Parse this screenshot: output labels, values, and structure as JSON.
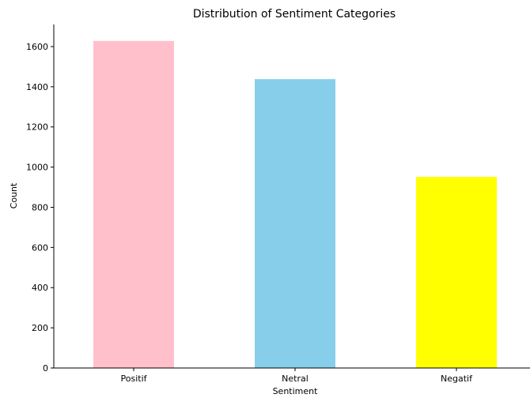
{
  "chart_data": {
    "type": "bar",
    "title": "Distribution of Sentiment Categories",
    "xlabel": "Sentiment",
    "ylabel": "Count",
    "categories": [
      "Positif",
      "Netral",
      "Negatif"
    ],
    "values": [
      1628,
      1438,
      951
    ],
    "colors": [
      "#ffc0cb",
      "#87ceeb",
      "#ffff00"
    ],
    "ylim": [
      0,
      1710
    ],
    "yticks": [
      0,
      200,
      400,
      600,
      800,
      1000,
      1200,
      1400,
      1600
    ],
    "grid": false,
    "legend": "none"
  }
}
